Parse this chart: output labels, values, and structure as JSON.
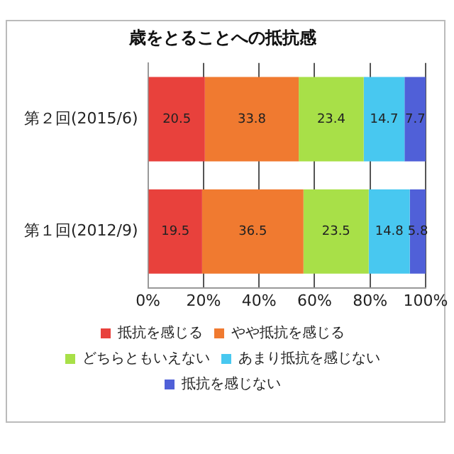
{
  "chart_data": {
    "type": "bar",
    "orientation": "horizontal",
    "stacked": true,
    "title": "歳をとることへの抵抗感",
    "categories": [
      "第２回(2015/6)",
      "第１回(2012/9)"
    ],
    "series": [
      {
        "name": "抵抗を感じる",
        "color": "#e8413c",
        "values": [
          20.5,
          19.5
        ]
      },
      {
        "name": "やや抵抗を感じる",
        "color": "#f07a30",
        "values": [
          33.8,
          36.5
        ]
      },
      {
        "name": "どちらともいえない",
        "color": "#a8e048",
        "values": [
          23.4,
          23.5
        ]
      },
      {
        "name": "あまり抵抗を感じない",
        "color": "#48c8f0",
        "values": [
          14.7,
          14.8
        ]
      },
      {
        "name": "抵抗を感じない",
        "color": "#5060d8",
        "values": [
          7.7,
          5.8
        ]
      }
    ],
    "xlim": [
      0,
      100
    ],
    "xticks": [
      {
        "value": 0,
        "label": "0%"
      },
      {
        "value": 20,
        "label": "20%"
      },
      {
        "value": 40,
        "label": "40%"
      },
      {
        "value": 60,
        "label": "60%"
      },
      {
        "value": 80,
        "label": "80%"
      },
      {
        "value": 100,
        "label": "100%"
      }
    ],
    "grid": "x",
    "legend": "bottom",
    "data_labels": true
  }
}
